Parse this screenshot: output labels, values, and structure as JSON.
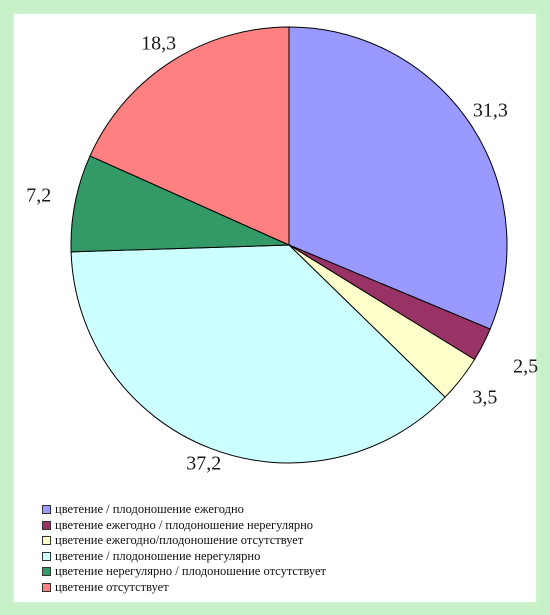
{
  "chart_data": {
    "type": "pie",
    "categories": [
      "цветение / плодоношение ежегодно",
      "цветение ежегодно / плодоношение нерегулярно",
      "цветение ежегодно/плодоношение отсутствует",
      "цветение / плодоношение нерегулярно",
      "цветение нерегулярно / плодоношение отсутствует",
      "цветение отсутствует"
    ],
    "values": [
      31.3,
      2.5,
      3.5,
      37.2,
      7.2,
      18.3
    ],
    "data_labels": [
      "31,3",
      "2,5",
      "3,5",
      "37,2",
      "7,2",
      "18,3"
    ],
    "colors": [
      "#9999ff",
      "#993366",
      "#ffffcc",
      "#ccffff",
      "#339966",
      "#ff8080"
    ],
    "legend_position": "bottom-left"
  }
}
